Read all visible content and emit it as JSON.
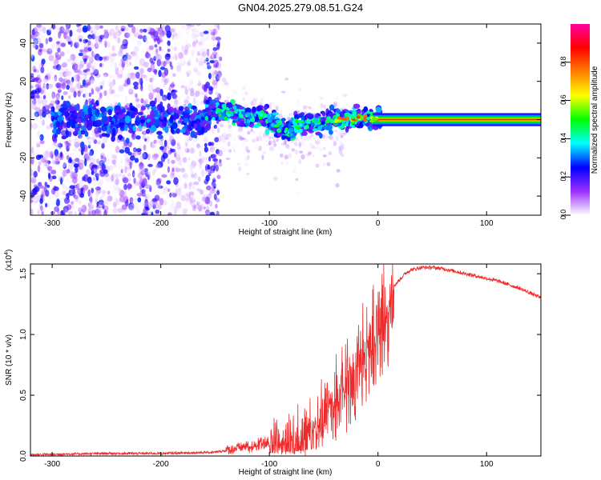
{
  "title": "GN04.2025.279.08.51.G24",
  "chart_data": [
    {
      "type": "heatmap",
      "xlabel": "Height of straight line (km)",
      "ylabel": "Frequency (Hz)",
      "xlim": [
        -320,
        150
      ],
      "ylim": [
        -50,
        50
      ],
      "xticks": [
        -300,
        -200,
        -100,
        0,
        100
      ],
      "yticks": [
        -40,
        -20,
        0,
        20,
        40
      ],
      "colorbar": {
        "label": "Normalized spectral amplitude",
        "range": [
          0,
          1
        ],
        "ticks": [
          "0.0",
          "0.2",
          "0.4",
          "0.6",
          "0.8"
        ],
        "colors": [
          "#ffffff",
          "#9b30ff",
          "#0000ff",
          "#00ffff",
          "#00ff00",
          "#ffff00",
          "#ff7f00",
          "#ff0000",
          "#ff00a0"
        ]
      },
      "ridge": {
        "x": [
          -155,
          -145,
          -130,
          -120,
          -110,
          -100,
          -90,
          -80,
          -70,
          -60,
          -50,
          -40,
          -30,
          -20,
          -10,
          0,
          10,
          50,
          100,
          150
        ],
        "y": [
          6,
          4,
          3,
          1,
          2,
          0,
          -4,
          -5,
          -2,
          -2,
          -1,
          0,
          0,
          1,
          1,
          0,
          0,
          0,
          0,
          0
        ]
      }
    },
    {
      "type": "line",
      "xlabel": "Height of straight line (km)",
      "ylabel": "SNR (10 * v/v)",
      "multiplier": "(x10",
      "multiplier_exp": "4",
      "xlim": [
        -320,
        150
      ],
      "ylim": [
        0,
        1.58
      ],
      "xticks": [
        -300,
        -200,
        -100,
        0,
        100
      ],
      "yticks": [
        "0.0",
        "0.5",
        "1.0",
        "1.5"
      ],
      "color": "#ee2a2a",
      "series": [
        {
          "x": [
            -320,
            -250,
            -200,
            -150,
            -135,
            -120,
            -110,
            -100,
            -90,
            -80,
            -70,
            -60,
            -50,
            -40,
            -30,
            -25,
            -20,
            -15,
            -10,
            -5,
            0,
            5,
            10,
            15,
            20,
            25,
            30,
            40,
            50,
            60,
            70,
            80,
            90,
            100,
            110,
            120,
            130,
            140,
            150
          ],
          "y": [
            0.01,
            0.02,
            0.02,
            0.03,
            0.05,
            0.08,
            0.11,
            0.13,
            0.16,
            0.2,
            0.22,
            0.3,
            0.42,
            0.55,
            0.65,
            0.72,
            0.82,
            0.92,
            1.0,
            1.02,
            1.08,
            1.22,
            1.32,
            1.4,
            1.45,
            1.5,
            1.53,
            1.55,
            1.55,
            1.54,
            1.52,
            1.5,
            1.48,
            1.46,
            1.44,
            1.41,
            1.38,
            1.34,
            1.3
          ]
        }
      ]
    }
  ]
}
